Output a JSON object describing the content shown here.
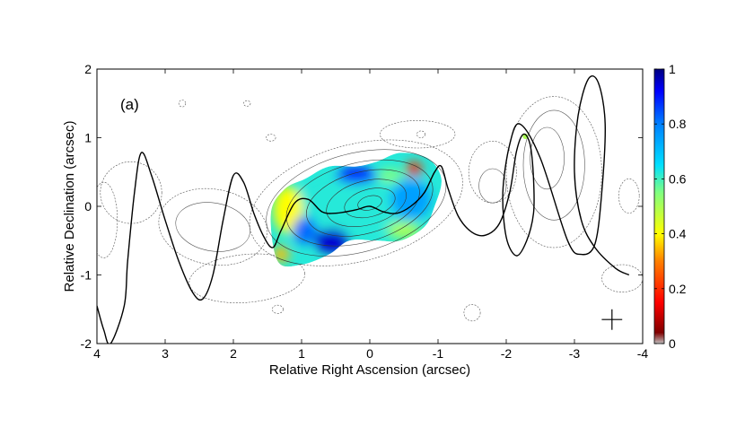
{
  "chart_data": {
    "type": "heatmap",
    "panel_label": "(a)",
    "xlabel": "Relative Right Ascension (arcsec)",
    "ylabel": "Relative Declination (arcsec)",
    "xlim": [
      4,
      -4
    ],
    "ylim": [
      -2,
      2
    ],
    "x_ticks": [
      "4",
      "3",
      "2",
      "1",
      "0",
      "-1",
      "-2",
      "-3",
      "-4"
    ],
    "y_ticks": [
      "-2",
      "-1",
      "0",
      "1",
      "2"
    ],
    "colorbar": {
      "range": [
        0,
        1
      ],
      "ticks": [
        "0",
        "0.2",
        "0.4",
        "0.6",
        "0.8",
        "1"
      ],
      "colormap": "jet"
    },
    "beam_marker": {
      "x": -3.55,
      "y": -1.65,
      "size": 0.3
    },
    "model_curve": [
      [
        4.0,
        -1.45
      ],
      [
        3.9,
        -1.8
      ],
      [
        3.8,
        -2.0
      ],
      [
        3.6,
        -1.45
      ],
      [
        3.55,
        -0.8
      ],
      [
        3.45,
        0.2
      ],
      [
        3.35,
        0.78
      ],
      [
        3.2,
        0.45
      ],
      [
        3.0,
        -0.2
      ],
      [
        2.8,
        -0.8
      ],
      [
        2.6,
        -1.25
      ],
      [
        2.45,
        -1.35
      ],
      [
        2.3,
        -1.0
      ],
      [
        2.15,
        -0.2
      ],
      [
        2.0,
        0.45
      ],
      [
        1.85,
        0.35
      ],
      [
        1.7,
        -0.1
      ],
      [
        1.55,
        -0.45
      ],
      [
        1.42,
        -0.6
      ],
      [
        1.3,
        -0.35
      ],
      [
        1.1,
        0.05
      ],
      [
        0.9,
        0.1
      ],
      [
        0.7,
        -0.08
      ],
      [
        0.5,
        -0.1
      ],
      [
        0.2,
        -0.05
      ],
      [
        0.0,
        0.0
      ],
      [
        -0.2,
        -0.08
      ],
      [
        -0.4,
        -0.1
      ],
      [
        -0.6,
        0.0
      ],
      [
        -0.8,
        0.2
      ],
      [
        -0.95,
        0.5
      ],
      [
        -1.05,
        0.58
      ],
      [
        -1.15,
        0.25
      ],
      [
        -1.3,
        -0.15
      ],
      [
        -1.5,
        -0.38
      ],
      [
        -1.7,
        -0.42
      ],
      [
        -1.9,
        -0.25
      ],
      [
        -2.05,
        0.2
      ],
      [
        -2.15,
        0.8
      ],
      [
        -2.25,
        1.05
      ],
      [
        -2.35,
        0.9
      ],
      [
        -2.4,
        0.4
      ],
      [
        -2.4,
        -0.1
      ],
      [
        -2.3,
        -0.5
      ],
      [
        -2.15,
        -0.72
      ],
      [
        -2.0,
        -0.45
      ],
      [
        -1.95,
        0.2
      ],
      [
        -2.05,
        0.9
      ],
      [
        -2.2,
        1.2
      ],
      [
        -2.5,
        0.7
      ],
      [
        -2.9,
        -0.5
      ],
      [
        -3.1,
        -0.7
      ],
      [
        -3.3,
        -0.55
      ],
      [
        -3.4,
        0.2
      ],
      [
        -3.45,
        1.2
      ],
      [
        -3.35,
        1.8
      ],
      [
        -3.2,
        1.85
      ],
      [
        -3.05,
        1.3
      ],
      [
        -3.0,
        0.5
      ],
      [
        -3.1,
        -0.2
      ],
      [
        -3.3,
        -0.6
      ],
      [
        -3.6,
        -0.9
      ],
      [
        -3.8,
        -1.0
      ]
    ],
    "polarization_region_outline": [
      [
        1.35,
        -0.8
      ],
      [
        1.45,
        -0.1
      ],
      [
        1.25,
        0.25
      ],
      [
        0.95,
        0.4
      ],
      [
        0.6,
        0.58
      ],
      [
        0.2,
        0.58
      ],
      [
        -0.1,
        0.65
      ],
      [
        -0.45,
        0.78
      ],
      [
        -0.85,
        0.7
      ],
      [
        -1.05,
        0.4
      ],
      [
        -0.95,
        0.0
      ],
      [
        -0.8,
        -0.3
      ],
      [
        -0.45,
        -0.5
      ],
      [
        -0.1,
        -0.5
      ],
      [
        0.3,
        -0.5
      ],
      [
        0.6,
        -0.7
      ],
      [
        1.0,
        -0.85
      ]
    ],
    "heatmap_blobs": [
      {
        "x": 0.2,
        "y": 0.05,
        "rx": 0.9,
        "ry": 0.45,
        "value": 0.62
      },
      {
        "x": 1.2,
        "y": -0.05,
        "rx": 0.22,
        "ry": 0.35,
        "value": 0.4
      },
      {
        "x": 0.55,
        "y": -0.5,
        "rx": 0.25,
        "ry": 0.18,
        "value": 0.95
      },
      {
        "x": 0.95,
        "y": -0.35,
        "rx": 0.18,
        "ry": 0.2,
        "value": 0.82
      },
      {
        "x": 0.2,
        "y": 0.45,
        "rx": 0.3,
        "ry": 0.12,
        "value": 0.9
      },
      {
        "x": -0.65,
        "y": 0.55,
        "rx": 0.12,
        "ry": 0.1,
        "value": 0.2
      },
      {
        "x": -0.3,
        "y": 0.45,
        "rx": 0.18,
        "ry": 0.1,
        "value": 0.55
      },
      {
        "x": -0.5,
        "y": -0.35,
        "rx": 0.25,
        "ry": 0.12,
        "value": 0.5
      },
      {
        "x": 1.3,
        "y": -0.7,
        "rx": 0.12,
        "ry": 0.12,
        "value": 0.35
      },
      {
        "x": -0.6,
        "y": 0.1,
        "rx": 0.3,
        "ry": 0.3,
        "value": 0.75
      },
      {
        "x": -2.28,
        "y": 1.02,
        "rx": 0.05,
        "ry": 0.05,
        "value": 0.5
      }
    ],
    "contours": [
      {
        "level": 1,
        "x": 0.2,
        "y": 0.05,
        "rx": 1.6,
        "ry": 0.85,
        "angle": -15
      },
      {
        "level": 2,
        "x": 0.2,
        "y": 0.05,
        "rx": 1.35,
        "ry": 0.72,
        "angle": -15
      },
      {
        "level": 3,
        "x": 0.15,
        "y": 0.05,
        "rx": 1.1,
        "ry": 0.58,
        "angle": -15
      },
      {
        "level": 4,
        "x": 0.1,
        "y": 0.05,
        "rx": 0.85,
        "ry": 0.45,
        "angle": -15
      },
      {
        "level": 5,
        "x": 0.05,
        "y": 0.05,
        "rx": 0.6,
        "ry": 0.32,
        "angle": -15
      },
      {
        "level": 6,
        "x": 0.0,
        "y": 0.05,
        "rx": 0.38,
        "ry": 0.2,
        "angle": -15
      },
      {
        "level": 7,
        "x": 0.0,
        "y": 0.05,
        "rx": 0.18,
        "ry": 0.1,
        "angle": -15
      },
      {
        "level": 1,
        "x": 2.3,
        "y": -0.3,
        "rx": 0.8,
        "ry": 0.55,
        "angle": 10
      },
      {
        "level": 2,
        "x": 2.3,
        "y": -0.3,
        "rx": 0.55,
        "ry": 0.35,
        "angle": 10
      },
      {
        "level": 1,
        "x": 3.5,
        "y": 0.2,
        "rx": 0.45,
        "ry": 0.45,
        "angle": 0
      },
      {
        "level": 1,
        "x": 3.9,
        "y": -0.2,
        "rx": 0.2,
        "ry": 0.55,
        "angle": 0
      },
      {
        "level": 1,
        "x": -1.8,
        "y": 0.5,
        "rx": 0.35,
        "ry": 0.45,
        "angle": 0
      },
      {
        "level": 2,
        "x": -1.8,
        "y": 0.3,
        "rx": 0.2,
        "ry": 0.25,
        "angle": 0
      },
      {
        "level": 1,
        "x": -2.7,
        "y": 0.5,
        "rx": 0.7,
        "ry": 1.1,
        "angle": 0
      },
      {
        "level": 2,
        "x": -2.7,
        "y": 0.6,
        "rx": 0.45,
        "ry": 0.8,
        "angle": 0
      },
      {
        "level": 3,
        "x": -2.6,
        "y": 0.7,
        "rx": 0.25,
        "ry": 0.45,
        "angle": 0
      },
      {
        "level": 1,
        "x": -0.7,
        "y": 1.05,
        "rx": 0.55,
        "ry": 0.2,
        "angle": 0
      },
      {
        "level": 1,
        "x": 1.8,
        "y": -1.05,
        "rx": 0.85,
        "ry": 0.35,
        "angle": -5
      },
      {
        "level": 1,
        "x": -1.5,
        "y": -1.55,
        "rx": 0.12,
        "ry": 0.12,
        "angle": 0
      },
      {
        "level": 1,
        "x": 1.35,
        "y": -1.5,
        "rx": 0.08,
        "ry": 0.06,
        "angle": 0
      },
      {
        "level": 1,
        "x": 1.45,
        "y": 1.0,
        "rx": 0.07,
        "ry": 0.05,
        "angle": 0
      },
      {
        "level": 1,
        "x": -0.75,
        "y": 1.05,
        "rx": 0.06,
        "ry": 0.05,
        "angle": 0
      },
      {
        "level": 1,
        "x": 2.75,
        "y": 1.5,
        "rx": 0.05,
        "ry": 0.05,
        "angle": 0
      },
      {
        "level": 1,
        "x": 1.8,
        "y": 1.5,
        "rx": 0.05,
        "ry": 0.04,
        "angle": 0
      },
      {
        "level": 1,
        "x": -3.8,
        "y": 0.15,
        "rx": 0.15,
        "ry": 0.25,
        "angle": 0
      },
      {
        "level": 1,
        "x": -3.7,
        "y": -1.05,
        "rx": 0.3,
        "ry": 0.2,
        "angle": 0
      }
    ]
  }
}
